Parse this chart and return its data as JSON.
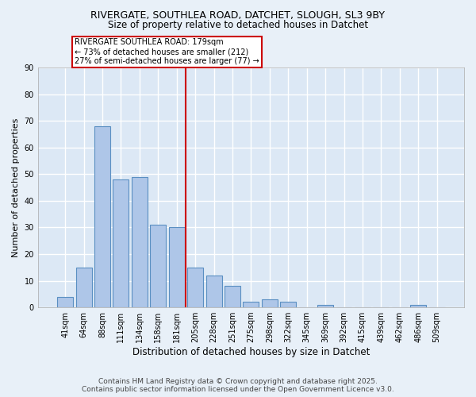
{
  "title1": "RIVERGATE, SOUTHLEA ROAD, DATCHET, SLOUGH, SL3 9BY",
  "title2": "Size of property relative to detached houses in Datchet",
  "xlabel": "Distribution of detached houses by size in Datchet",
  "ylabel": "Number of detached properties",
  "bar_labels": [
    "41sqm",
    "64sqm",
    "88sqm",
    "111sqm",
    "134sqm",
    "158sqm",
    "181sqm",
    "205sqm",
    "228sqm",
    "251sqm",
    "275sqm",
    "298sqm",
    "322sqm",
    "345sqm",
    "369sqm",
    "392sqm",
    "415sqm",
    "439sqm",
    "462sqm",
    "486sqm",
    "509sqm"
  ],
  "bar_values": [
    4,
    15,
    68,
    48,
    49,
    31,
    30,
    15,
    12,
    8,
    2,
    3,
    2,
    0,
    1,
    0,
    0,
    0,
    0,
    1,
    0
  ],
  "bar_color": "#aec6e8",
  "bar_edge_color": "#5a8fc2",
  "vline_index": 6,
  "annotation_text": "RIVERGATE SOUTHLEA ROAD: 179sqm\n← 73% of detached houses are smaller (212)\n27% of semi-detached houses are larger (77) →",
  "annotation_box_color": "#ffffff",
  "annotation_box_edge_color": "#cc0000",
  "vline_color": "#cc0000",
  "ylim": [
    0,
    90
  ],
  "yticks": [
    0,
    10,
    20,
    30,
    40,
    50,
    60,
    70,
    80,
    90
  ],
  "bg_color": "#e8f0f8",
  "plot_bg_color": "#dce8f5",
  "grid_color": "#ffffff",
  "footer1": "Contains HM Land Registry data © Crown copyright and database right 2025.",
  "footer2": "Contains public sector information licensed under the Open Government Licence v3.0."
}
